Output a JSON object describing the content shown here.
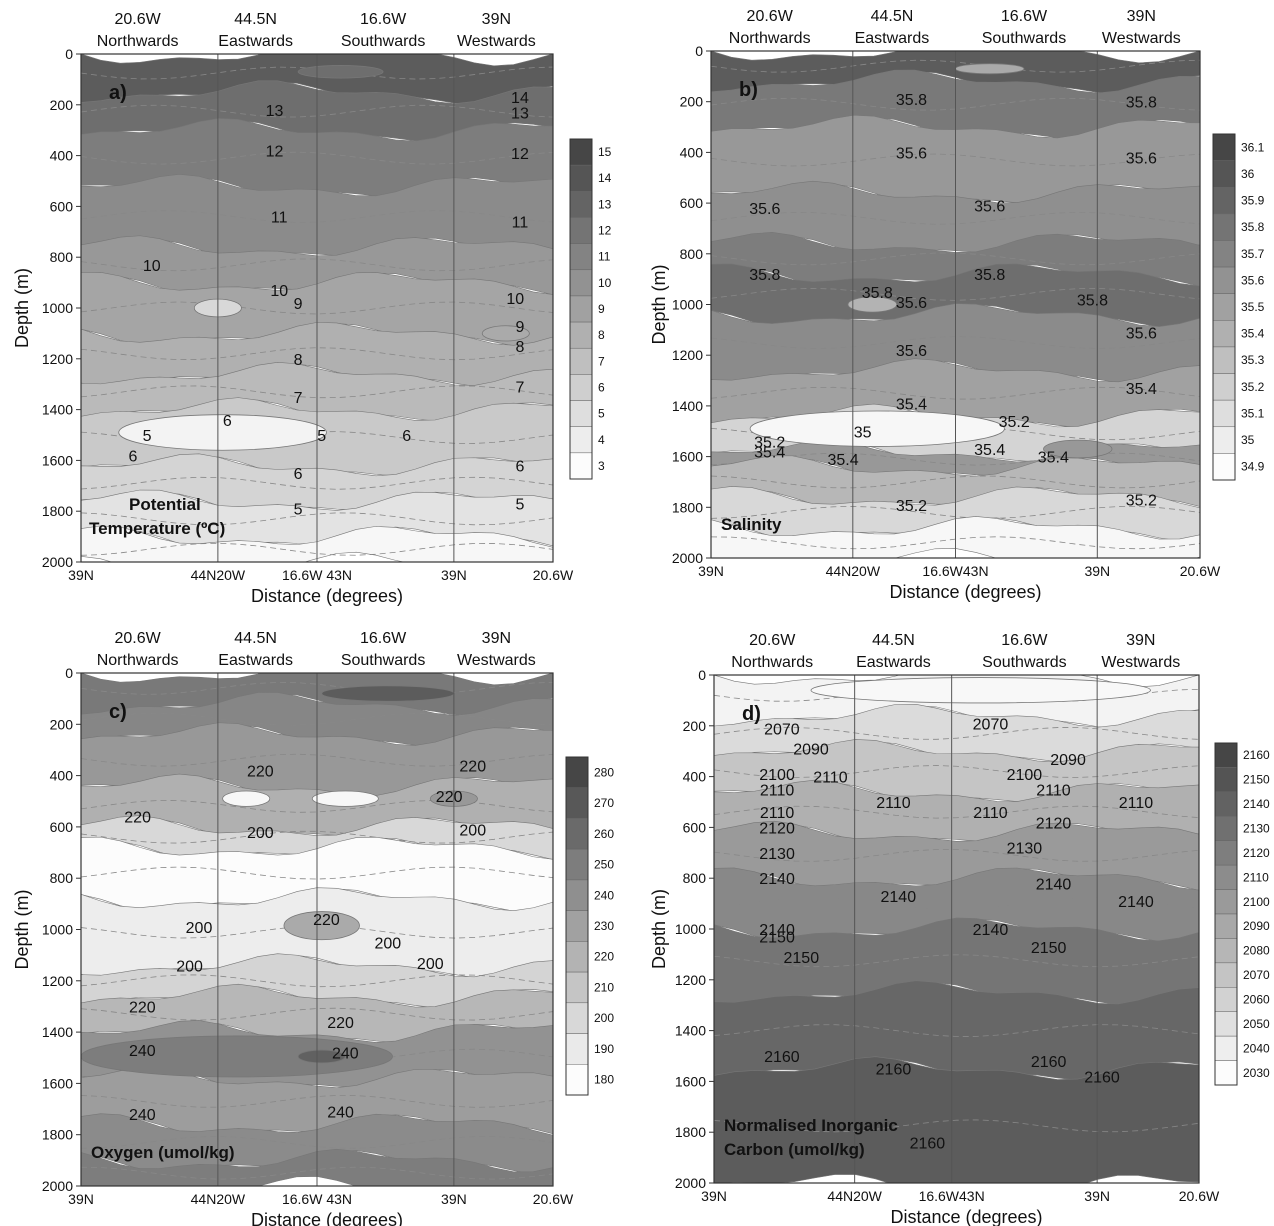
{
  "figure": {
    "section_labels": [
      {
        "top": "20.6W",
        "bottom": "Northwards"
      },
      {
        "top": "44.5N",
        "bottom": "Eastwards"
      },
      {
        "top": "16.6W",
        "bottom": "Southwards"
      },
      {
        "top": "39N",
        "bottom": "Westwards"
      }
    ],
    "y_label": "Depth (m)",
    "x_label": "Distance (degrees)",
    "y_ticks": [
      "0",
      "200",
      "400",
      "600",
      "800",
      "1000",
      "1200",
      "1400",
      "1600",
      "1800",
      "2000"
    ],
    "x_ticks": [
      "39N",
      "44N20W",
      "16.6W 43N",
      "39N",
      "20.6W"
    ],
    "x_ticks_right": [
      "39N",
      "44N20W",
      "16.6W43N",
      "39N",
      "20.6W"
    ]
  },
  "chart_data": [
    {
      "type": "heatmap",
      "panel": "a)",
      "title": "Potential Temperature (ºC)",
      "ylim": [
        2000,
        0
      ],
      "colorbar": [
        "15",
        "14",
        "13",
        "12",
        "11",
        "10",
        "9",
        "8",
        "7",
        "6",
        "5",
        "4",
        "3"
      ],
      "contour_labels": [
        {
          "text": "13",
          "x": 0.41,
          "depth": 220
        },
        {
          "text": "14",
          "x": 0.93,
          "depth": 170
        },
        {
          "text": "13",
          "x": 0.93,
          "depth": 230
        },
        {
          "text": "12",
          "x": 0.41,
          "depth": 380
        },
        {
          "text": "12",
          "x": 0.93,
          "depth": 390
        },
        {
          "text": "11",
          "x": 0.42,
          "depth": 640
        },
        {
          "text": "11",
          "x": 0.93,
          "depth": 660
        },
        {
          "text": "10",
          "x": 0.15,
          "depth": 830
        },
        {
          "text": "10",
          "x": 0.42,
          "depth": 930
        },
        {
          "text": "9",
          "x": 0.46,
          "depth": 980
        },
        {
          "text": "10",
          "x": 0.92,
          "depth": 960
        },
        {
          "text": "9",
          "x": 0.93,
          "depth": 1070
        },
        {
          "text": "8",
          "x": 0.46,
          "depth": 1200
        },
        {
          "text": "8",
          "x": 0.93,
          "depth": 1150
        },
        {
          "text": "7",
          "x": 0.46,
          "depth": 1350
        },
        {
          "text": "7",
          "x": 0.93,
          "depth": 1310
        },
        {
          "text": "6",
          "x": 0.31,
          "depth": 1440
        },
        {
          "text": "5",
          "x": 0.14,
          "depth": 1500
        },
        {
          "text": "5",
          "x": 0.51,
          "depth": 1500
        },
        {
          "text": "6",
          "x": 0.69,
          "depth": 1500
        },
        {
          "text": "6",
          "x": 0.11,
          "depth": 1580
        },
        {
          "text": "6",
          "x": 0.46,
          "depth": 1650
        },
        {
          "text": "6",
          "x": 0.93,
          "depth": 1620
        },
        {
          "text": "5",
          "x": 0.46,
          "depth": 1790
        },
        {
          "text": "5",
          "x": 0.93,
          "depth": 1770
        }
      ]
    },
    {
      "type": "heatmap",
      "panel": "b)",
      "title": "Salinity",
      "ylim": [
        2000,
        0
      ],
      "colorbar": [
        "36.1",
        "36",
        "35.9",
        "35.8",
        "35.7",
        "35.6",
        "35.5",
        "35.4",
        "35.3",
        "35.2",
        "35.1",
        "35",
        "34.9"
      ],
      "contour_labels": [
        {
          "text": "35.8",
          "x": 0.41,
          "depth": 190
        },
        {
          "text": "35.8",
          "x": 0.88,
          "depth": 200
        },
        {
          "text": "35.6",
          "x": 0.41,
          "depth": 400
        },
        {
          "text": "35.6",
          "x": 0.88,
          "depth": 420
        },
        {
          "text": "35.6",
          "x": 0.11,
          "depth": 620
        },
        {
          "text": "35.6",
          "x": 0.57,
          "depth": 610
        },
        {
          "text": "35.8",
          "x": 0.11,
          "depth": 880
        },
        {
          "text": "35.8",
          "x": 0.57,
          "depth": 880
        },
        {
          "text": "35.8",
          "x": 0.34,
          "depth": 950
        },
        {
          "text": "35.6",
          "x": 0.41,
          "depth": 990
        },
        {
          "text": "35.8",
          "x": 0.78,
          "depth": 980
        },
        {
          "text": "35.6",
          "x": 0.88,
          "depth": 1110
        },
        {
          "text": "35.6",
          "x": 0.41,
          "depth": 1180
        },
        {
          "text": "35.4",
          "x": 0.88,
          "depth": 1330
        },
        {
          "text": "35.4",
          "x": 0.41,
          "depth": 1390
        },
        {
          "text": "35.2",
          "x": 0.62,
          "depth": 1460
        },
        {
          "text": "35.2",
          "x": 0.12,
          "depth": 1540
        },
        {
          "text": "35",
          "x": 0.31,
          "depth": 1500
        },
        {
          "text": "35.4",
          "x": 0.12,
          "depth": 1580
        },
        {
          "text": "35.4",
          "x": 0.27,
          "depth": 1610
        },
        {
          "text": "35.4",
          "x": 0.57,
          "depth": 1570
        },
        {
          "text": "35.4",
          "x": 0.7,
          "depth": 1600
        },
        {
          "text": "35.2",
          "x": 0.41,
          "depth": 1790
        },
        {
          "text": "35.2",
          "x": 0.88,
          "depth": 1770
        }
      ]
    },
    {
      "type": "heatmap",
      "panel": "c)",
      "title": "Oxygen (umol/kg)",
      "ylim": [
        2000,
        0
      ],
      "colorbar": [
        "280",
        "270",
        "260",
        "250",
        "240",
        "230",
        "220",
        "210",
        "200",
        "190",
        "180"
      ],
      "contour_labels": [
        {
          "text": "220",
          "x": 0.38,
          "depth": 380
        },
        {
          "text": "220",
          "x": 0.83,
          "depth": 360
        },
        {
          "text": "220",
          "x": 0.12,
          "depth": 560
        },
        {
          "text": "220",
          "x": 0.78,
          "depth": 480
        },
        {
          "text": "200",
          "x": 0.38,
          "depth": 620
        },
        {
          "text": "200",
          "x": 0.83,
          "depth": 610
        },
        {
          "text": "220",
          "x": 0.52,
          "depth": 960
        },
        {
          "text": "200",
          "x": 0.25,
          "depth": 990
        },
        {
          "text": "200",
          "x": 0.65,
          "depth": 1050
        },
        {
          "text": "200",
          "x": 0.74,
          "depth": 1130
        },
        {
          "text": "200",
          "x": 0.23,
          "depth": 1140
        },
        {
          "text": "220",
          "x": 0.13,
          "depth": 1300
        },
        {
          "text": "220",
          "x": 0.55,
          "depth": 1360
        },
        {
          "text": "240",
          "x": 0.13,
          "depth": 1470
        },
        {
          "text": "240",
          "x": 0.56,
          "depth": 1480
        },
        {
          "text": "240",
          "x": 0.13,
          "depth": 1720
        },
        {
          "text": "240",
          "x": 0.55,
          "depth": 1710
        }
      ]
    },
    {
      "type": "heatmap",
      "panel": "d)",
      "title": "Normalised Inorganic Carbon (umol/kg)",
      "ylim": [
        2000,
        0
      ],
      "colorbar": [
        "2160",
        "2150",
        "2140",
        "2130",
        "2120",
        "2110",
        "2100",
        "2090",
        "2080",
        "2070",
        "2060",
        "2050",
        "2040",
        "2030"
      ],
      "contour_labels": [
        {
          "text": "2070",
          "x": 0.14,
          "depth": 210
        },
        {
          "text": "2070",
          "x": 0.57,
          "depth": 190
        },
        {
          "text": "2090",
          "x": 0.2,
          "depth": 290
        },
        {
          "text": "2090",
          "x": 0.73,
          "depth": 330
        },
        {
          "text": "2100",
          "x": 0.13,
          "depth": 390
        },
        {
          "text": "2110",
          "x": 0.24,
          "depth": 400
        },
        {
          "text": "2100",
          "x": 0.64,
          "depth": 390
        },
        {
          "text": "2110",
          "x": 0.13,
          "depth": 450
        },
        {
          "text": "2110",
          "x": 0.7,
          "depth": 450
        },
        {
          "text": "2110",
          "x": 0.37,
          "depth": 500
        },
        {
          "text": "2110",
          "x": 0.87,
          "depth": 500
        },
        {
          "text": "2110",
          "x": 0.13,
          "depth": 540
        },
        {
          "text": "2110",
          "x": 0.57,
          "depth": 540
        },
        {
          "text": "2120",
          "x": 0.13,
          "depth": 600
        },
        {
          "text": "2120",
          "x": 0.7,
          "depth": 580
        },
        {
          "text": "2130",
          "x": 0.13,
          "depth": 700
        },
        {
          "text": "2130",
          "x": 0.64,
          "depth": 680
        },
        {
          "text": "2140",
          "x": 0.13,
          "depth": 800
        },
        {
          "text": "2140",
          "x": 0.7,
          "depth": 820
        },
        {
          "text": "2140",
          "x": 0.38,
          "depth": 870
        },
        {
          "text": "2140",
          "x": 0.87,
          "depth": 890
        },
        {
          "text": "2140",
          "x": 0.13,
          "depth": 1000
        },
        {
          "text": "2140",
          "x": 0.57,
          "depth": 1000
        },
        {
          "text": "2150",
          "x": 0.13,
          "depth": 1030
        },
        {
          "text": "2150",
          "x": 0.69,
          "depth": 1070
        },
        {
          "text": "2150",
          "x": 0.18,
          "depth": 1110
        },
        {
          "text": "2160",
          "x": 0.14,
          "depth": 1500
        },
        {
          "text": "2160",
          "x": 0.69,
          "depth": 1520
        },
        {
          "text": "2160",
          "x": 0.37,
          "depth": 1550
        },
        {
          "text": "2160",
          "x": 0.8,
          "depth": 1580
        },
        {
          "text": "2160",
          "x": 0.44,
          "depth": 1840
        }
      ]
    }
  ]
}
